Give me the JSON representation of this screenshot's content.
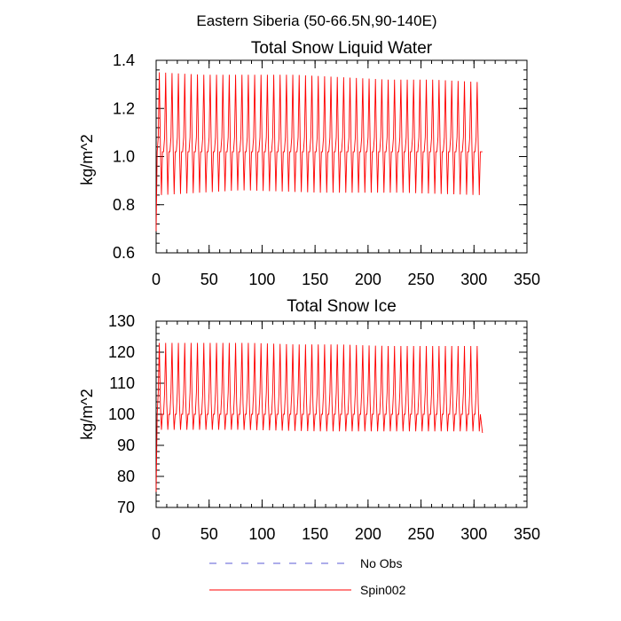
{
  "page_title": "Eastern Siberia (50-66.5N,90-140E)",
  "legend": [
    {
      "name": "No Obs",
      "color": "#5b5bd6",
      "dash": "dashed"
    },
    {
      "name": "Spin002",
      "color": "#ff0000",
      "dash": "solid"
    }
  ],
  "chart_data": [
    {
      "type": "line",
      "title": "Total Snow Liquid Water",
      "ylabel": "kg/m^2",
      "xlabel": "",
      "xlim": [
        0,
        350
      ],
      "ylim": [
        0.6,
        1.4
      ],
      "xticks": [
        0,
        50,
        100,
        150,
        200,
        250,
        300,
        350
      ],
      "yticks": [
        0.6,
        0.8,
        1.0,
        1.2,
        1.4
      ],
      "ytick_labels": [
        "0.6",
        "0.8",
        "1.0",
        "1.2",
        "1.4"
      ],
      "series": [
        {
          "name": "Spin002",
          "color": "#ff0000",
          "pattern": "seasonal-oscillation",
          "x_start": 0,
          "x_end": 308,
          "initial_value": 0.69,
          "period": 6,
          "peak_values": [
            1.35,
            1.34,
            1.34,
            1.34,
            1.33,
            1.32,
            1.32,
            1.31
          ],
          "secondary_peak": 1.08,
          "trough_values": [
            0.84,
            0.86,
            0.85,
            0.85,
            0.84
          ],
          "mid_value": 1.02,
          "final_value": 1.02
        }
      ]
    },
    {
      "type": "line",
      "title": "Total Snow Ice",
      "ylabel": "kg/m^2",
      "xlabel": "",
      "xlim": [
        0,
        350
      ],
      "ylim": [
        70,
        130
      ],
      "xticks": [
        0,
        50,
        100,
        150,
        200,
        250,
        300,
        350
      ],
      "yticks": [
        70,
        80,
        90,
        100,
        110,
        120,
        130
      ],
      "ytick_labels": [
        "70",
        "80",
        "90",
        "100",
        "110",
        "120",
        "130"
      ],
      "series": [
        {
          "name": "Spin002",
          "color": "#ff0000",
          "pattern": "seasonal-oscillation",
          "x_start": 0,
          "x_end": 308,
          "initial_value": 75,
          "period": 6,
          "peak_values": [
            123,
            123,
            123,
            122.5,
            122.5,
            122,
            122,
            122
          ],
          "secondary_peak": 107,
          "trough_values": [
            95,
            95,
            94.5,
            94.5,
            94.5
          ],
          "mid_value": 100,
          "final_value": 94
        }
      ]
    }
  ]
}
